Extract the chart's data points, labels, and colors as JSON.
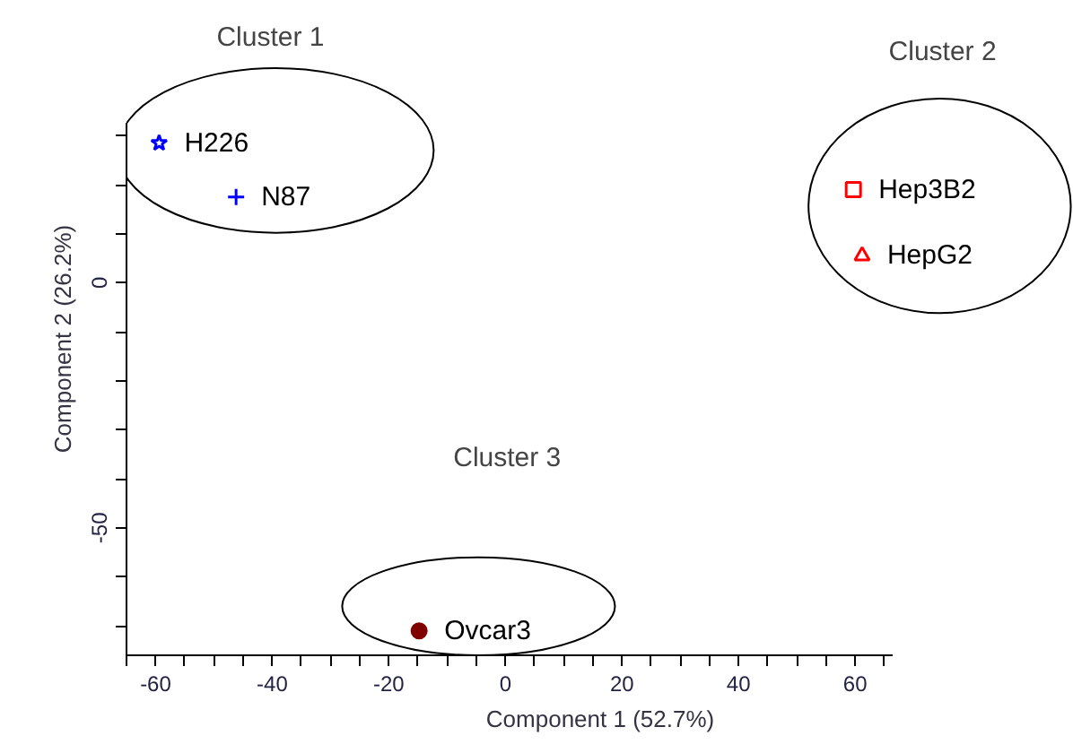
{
  "chart_data": {
    "type": "scatter",
    "xlabel": "Component 1 (52.7%)",
    "ylabel": "Component 2 (26.2%)",
    "xlim": [
      -65,
      66.5
    ],
    "ylim": [
      -76,
      32.5
    ],
    "xticks": [
      {
        "value": -65,
        "label": null
      },
      -60,
      {
        "value": -55,
        "label": null
      },
      {
        "value": -50,
        "label": null
      },
      {
        "value": -45,
        "label": null
      },
      -40,
      {
        "value": -35,
        "label": null
      },
      {
        "value": -30,
        "label": null
      },
      {
        "value": -25,
        "label": null
      },
      -20,
      {
        "value": -15,
        "label": null
      },
      {
        "value": -10,
        "label": null
      },
      {
        "value": -5,
        "label": null
      },
      0,
      {
        "value": 5,
        "label": null
      },
      {
        "value": 10,
        "label": null
      },
      {
        "value": 15,
        "label": null
      },
      20,
      {
        "value": 25,
        "label": null
      },
      {
        "value": 30,
        "label": null
      },
      {
        "value": 35,
        "label": null
      },
      40,
      {
        "value": 45,
        "label": null
      },
      {
        "value": 50,
        "label": null
      },
      {
        "value": 55,
        "label": null
      },
      60,
      {
        "value": 65,
        "label": null
      }
    ],
    "yticks": [
      {
        "value": 30,
        "label": null
      },
      {
        "value": 20,
        "label": null
      },
      {
        "value": 10,
        "label": null
      },
      0,
      {
        "value": -10,
        "label": null
      },
      {
        "value": -20,
        "label": null
      },
      {
        "value": -30,
        "label": null
      },
      {
        "value": -40,
        "label": null
      },
      -50,
      {
        "value": -60,
        "label": null
      },
      {
        "value": -70,
        "label": null
      }
    ],
    "series": [
      {
        "name": "H226",
        "color": "#0000ff",
        "marker": "star",
        "x": [
          -59.4
        ],
        "values": [
          28.5
        ]
      },
      {
        "name": "N87",
        "color": "#0000ff",
        "marker": "cross",
        "x": [
          -46.2
        ],
        "values": [
          17.5
        ]
      },
      {
        "name": "Hep3B2",
        "color": "#ff0000",
        "marker": "square",
        "x": [
          59.7
        ],
        "values": [
          19
        ]
      },
      {
        "name": "HepG2",
        "color": "#ff0000",
        "marker": "triangle",
        "x": [
          61.2
        ],
        "values": [
          5.5
        ]
      },
      {
        "name": "Ovcar3",
        "color": "#800000",
        "marker": "circle",
        "x": [
          -14.8
        ],
        "values": [
          -71
        ]
      }
    ],
    "annotations": [
      "Cluster 1",
      "Cluster 2",
      "Cluster 3"
    ],
    "grid": false
  }
}
